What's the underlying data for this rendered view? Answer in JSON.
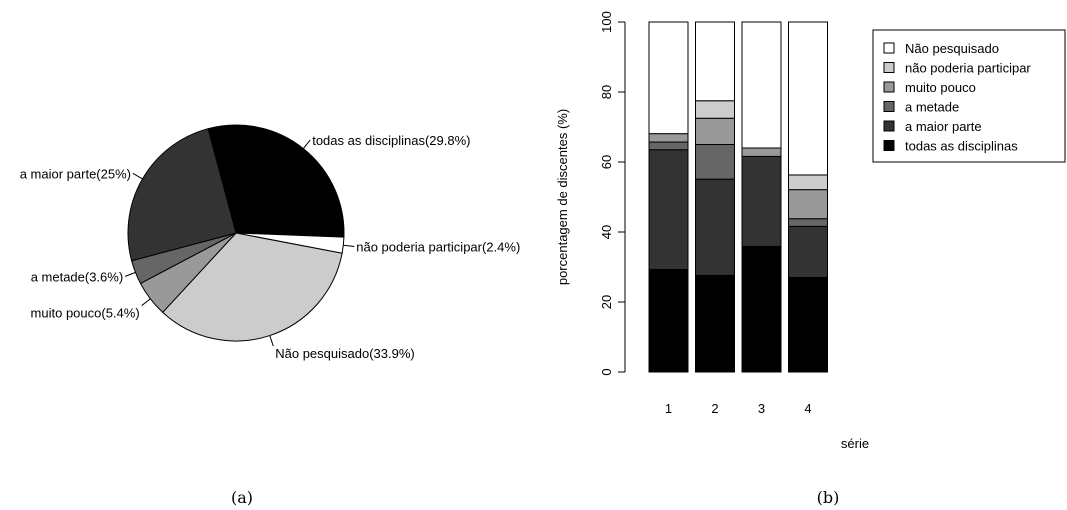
{
  "chart_data": [
    {
      "type": "pie",
      "caption": "(a)",
      "slices": [
        {
          "label": "todas as disciplinas",
          "value": 29.8,
          "color": "#000000",
          "text": "todas as disciplinas(29.8%)"
        },
        {
          "label": "não poderia participar",
          "value": 2.4,
          "color": "#ffffff",
          "text": "não poderia participar(2.4%)"
        },
        {
          "label": "Não pesquisado",
          "value": 33.9,
          "color": "#cccccc",
          "text": "Não pesquisado(33.9%)"
        },
        {
          "label": "muito pouco",
          "value": 5.4,
          "color": "#999999",
          "text": "muito pouco(5.4%)"
        },
        {
          "label": "a metade",
          "value": 3.6,
          "color": "#666666",
          "text": "a metade(3.6%)"
        },
        {
          "label": "a maior parte",
          "value": 25,
          "color": "#333333",
          "text": "a maior parte(25%)"
        }
      ]
    },
    {
      "type": "bar",
      "stacked": true,
      "caption": "(b)",
      "categories": [
        "1",
        "2",
        "3",
        "4"
      ],
      "xlabel": "série",
      "ylabel": "porcentagem de discentes (%)",
      "ylim": [
        0,
        100
      ],
      "yticks": [
        "0",
        "20",
        "40",
        "60",
        "80",
        "100"
      ],
      "series": [
        {
          "name": "todas as disciplinas",
          "color": "#000000",
          "values": [
            29.3,
            27.6,
            35.9,
            27.0
          ]
        },
        {
          "name": "a maior parte",
          "color": "#333333",
          "values": [
            34.2,
            27.5,
            25.7,
            14.6
          ]
        },
        {
          "name": "a metade",
          "color": "#666666",
          "values": [
            2.2,
            9.9,
            0.0,
            2.2
          ]
        },
        {
          "name": "muito pouco",
          "color": "#999999",
          "values": [
            2.4,
            7.5,
            2.4,
            8.3
          ]
        },
        {
          "name": "não poderia participar",
          "color": "#cccccc",
          "values": [
            0.0,
            5.0,
            0.0,
            4.2
          ]
        },
        {
          "name": "Não pesquisado",
          "color": "#ffffff",
          "values": [
            31.9,
            22.5,
            36.0,
            43.7
          ]
        }
      ],
      "legend": {
        "position": "top-right",
        "entries": [
          {
            "label": "Não pesquisado",
            "color": "#ffffff"
          },
          {
            "label": "não poderia participar",
            "color": "#cccccc"
          },
          {
            "label": "muito pouco",
            "color": "#999999"
          },
          {
            "label": "a metade",
            "color": "#666666"
          },
          {
            "label": "a maior parte",
            "color": "#333333"
          },
          {
            "label": "todas as disciplinas",
            "color": "#000000"
          }
        ]
      }
    }
  ]
}
